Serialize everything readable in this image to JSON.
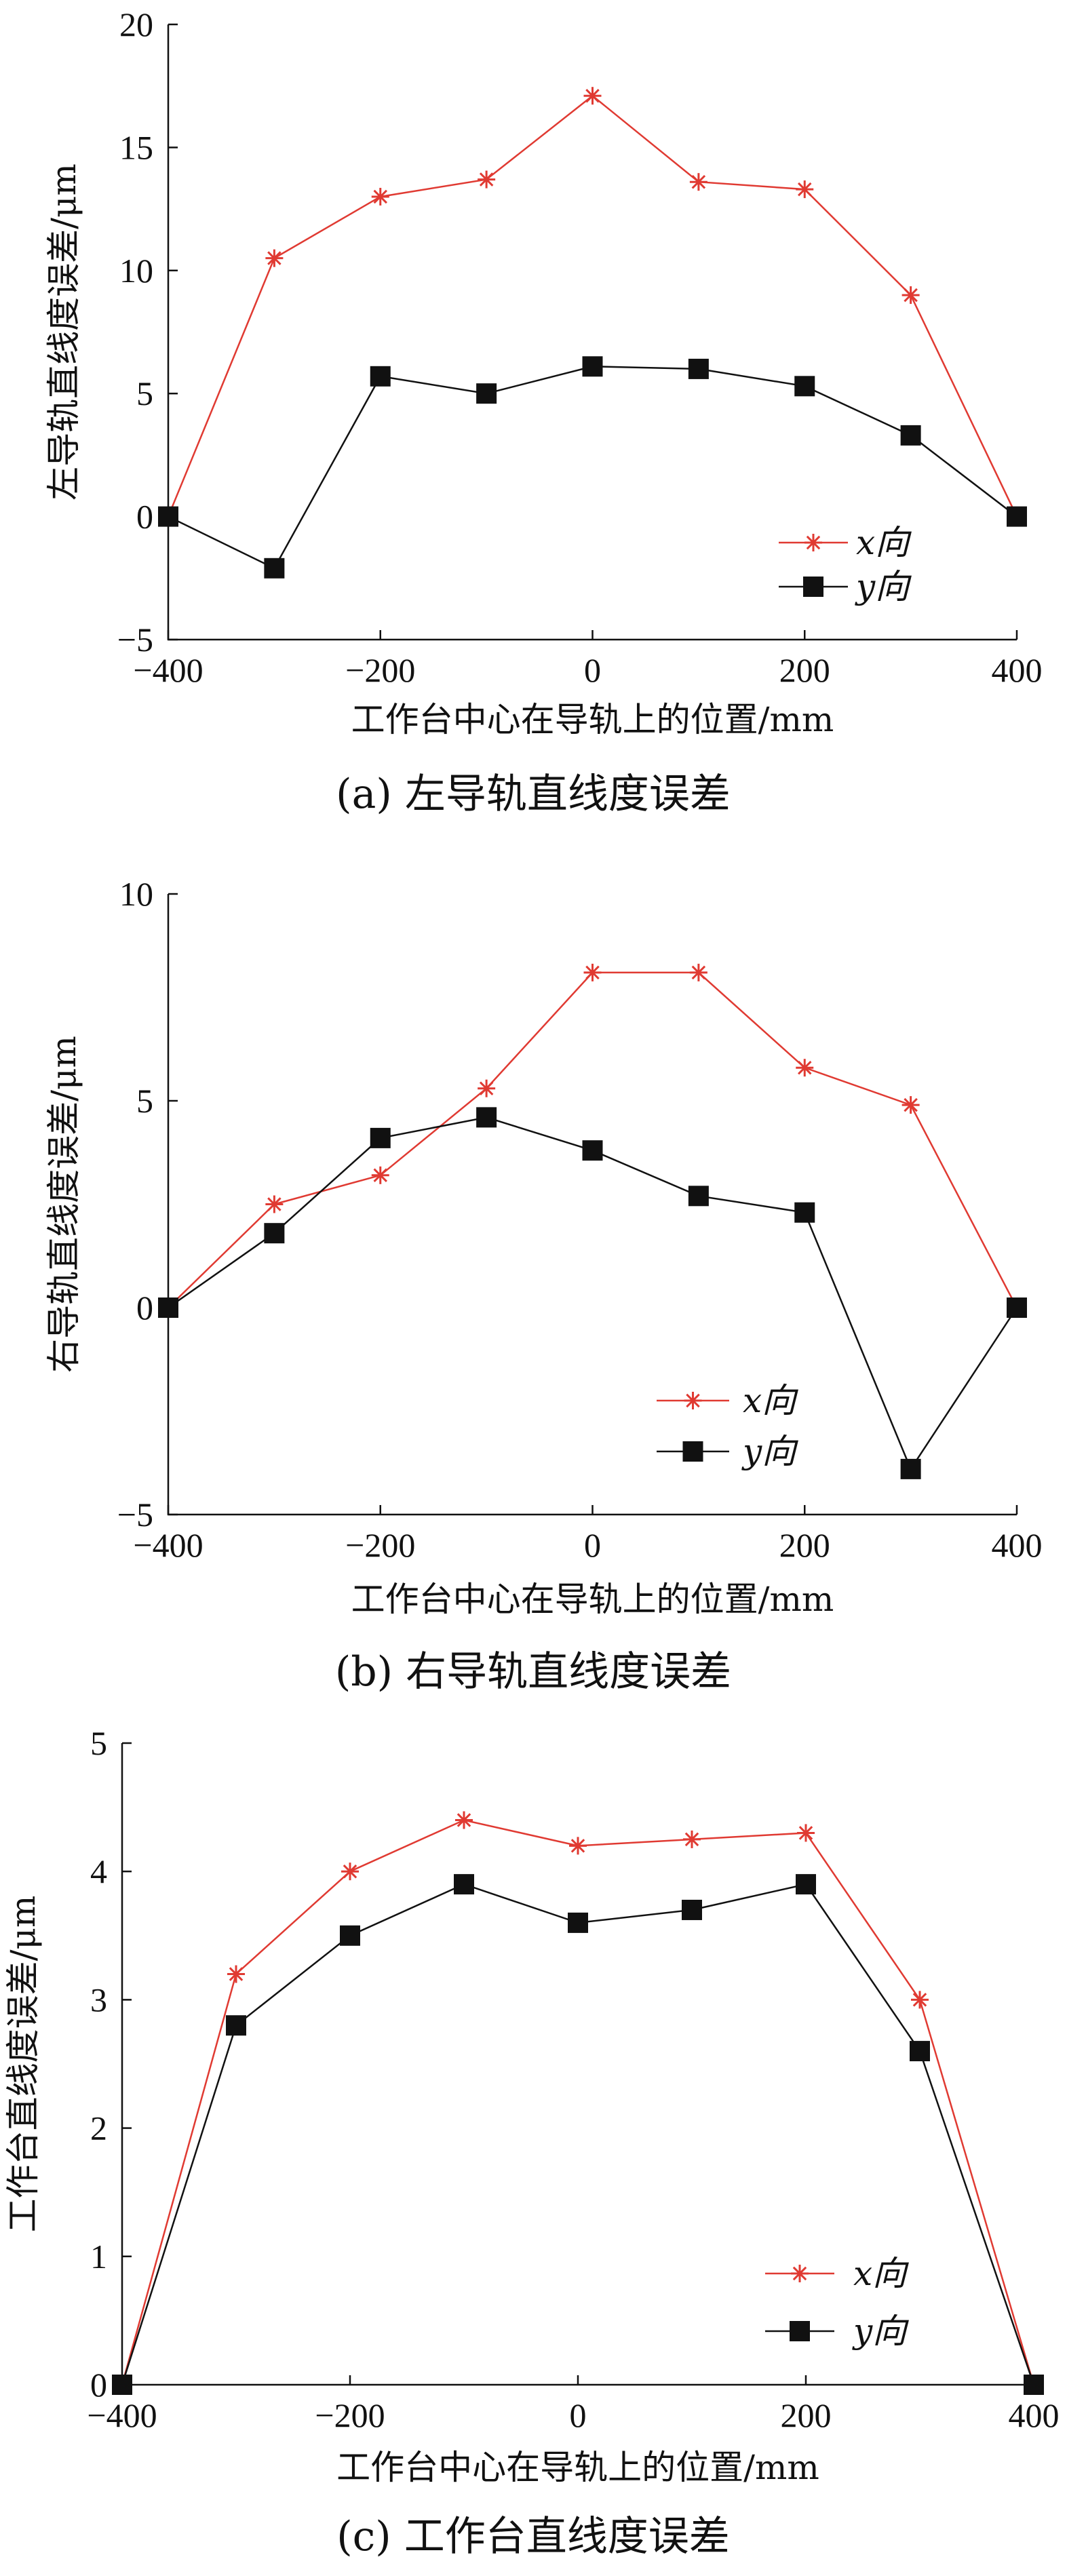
{
  "colors": {
    "series_x": "#e03a32",
    "series_y": "#111111",
    "axis": "#111111"
  },
  "chart_data": [
    {
      "type": "line",
      "caption": "(a)  左导轨直线度误差",
      "xlabel": "工作台中心在导轨上的位置/mm",
      "ylabel": "左导轨直线度误差/μm",
      "xlim": [
        -400,
        400
      ],
      "ylim": [
        -5,
        20
      ],
      "xticks": [
        -400,
        -200,
        0,
        200,
        400
      ],
      "yticks": [
        -5,
        0,
        5,
        10,
        15,
        20
      ],
      "grid": false,
      "legend_position": "lower-right",
      "x": [
        -400,
        -300,
        -200,
        -100,
        0,
        100,
        200,
        300,
        400
      ],
      "series": [
        {
          "name": "x向",
          "marker": "asterisk",
          "color": "#e03a32",
          "values": [
            0,
            10.5,
            13.0,
            13.7,
            17.1,
            13.6,
            13.3,
            9.0,
            0
          ]
        },
        {
          "name": "y向",
          "marker": "square",
          "color": "#111111",
          "values": [
            0,
            -2.1,
            5.7,
            5.0,
            6.1,
            6.0,
            5.3,
            3.3,
            0
          ]
        }
      ]
    },
    {
      "type": "line",
      "caption": "(b)  右导轨直线度误差",
      "xlabel": "工作台中心在导轨上的位置/mm",
      "ylabel": "右导轨直线度误差/μm",
      "xlim": [
        -400,
        400
      ],
      "ylim": [
        -5,
        10
      ],
      "xticks": [
        -400,
        -200,
        0,
        200,
        400
      ],
      "yticks": [
        -5,
        0,
        5,
        10
      ],
      "grid": false,
      "legend_position": "lower-right",
      "x": [
        -400,
        -300,
        -200,
        -100,
        0,
        100,
        200,
        300,
        400
      ],
      "series": [
        {
          "name": "x向",
          "marker": "asterisk",
          "color": "#e03a32",
          "values": [
            0,
            2.5,
            3.2,
            5.3,
            8.1,
            8.1,
            5.8,
            4.9,
            0
          ]
        },
        {
          "name": "y向",
          "marker": "square",
          "color": "#111111",
          "values": [
            0,
            1.8,
            4.1,
            4.6,
            3.8,
            2.7,
            2.3,
            -3.9,
            0
          ]
        }
      ]
    },
    {
      "type": "line",
      "caption": "(c)  工作台直线度误差",
      "xlabel": "工作台中心在导轨上的位置/mm",
      "ylabel": "工作台直线度误差/μm",
      "xlim": [
        -400,
        400
      ],
      "ylim": [
        0,
        5
      ],
      "xticks": [
        -400,
        -200,
        0,
        200,
        400
      ],
      "yticks": [
        0,
        1,
        2,
        3,
        4,
        5
      ],
      "grid": false,
      "legend_position": "lower-right",
      "x": [
        -400,
        -300,
        -200,
        -100,
        0,
        100,
        200,
        300,
        400
      ],
      "series": [
        {
          "name": "x向",
          "marker": "asterisk",
          "color": "#e03a32",
          "values": [
            0,
            3.2,
            4.0,
            4.4,
            4.2,
            4.25,
            4.3,
            3.0,
            0
          ]
        },
        {
          "name": "y向",
          "marker": "square",
          "color": "#111111",
          "values": [
            0,
            2.8,
            3.5,
            3.9,
            3.6,
            3.7,
            3.9,
            2.6,
            0
          ]
        }
      ]
    }
  ]
}
